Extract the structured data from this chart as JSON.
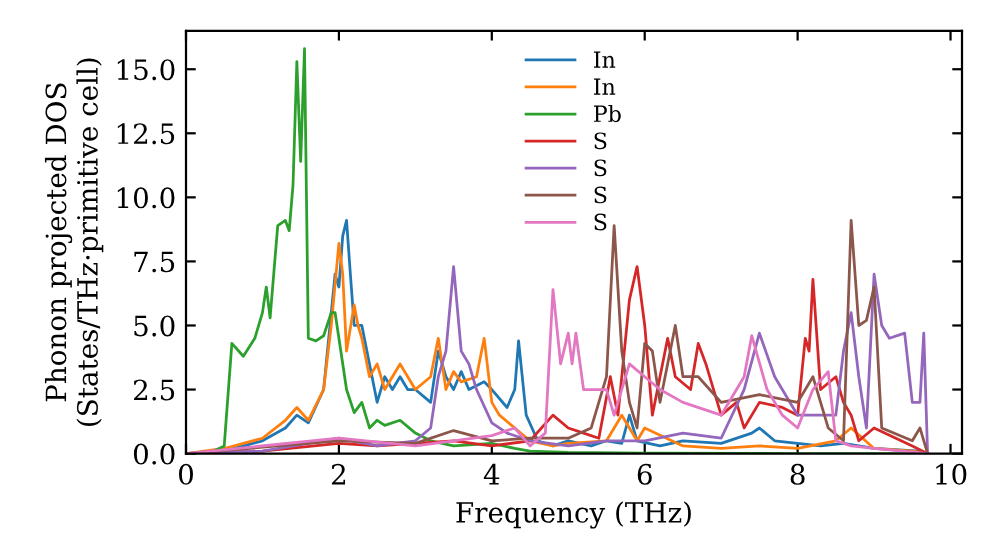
{
  "chart_data": {
    "type": "line",
    "xlabel": "Frequency (THz)",
    "ylabel": "Phonon projected DOS\n(States/THz·primitive cell)",
    "xlim": [
      0,
      10.15
    ],
    "ylim": [
      0,
      16.5
    ],
    "xticks": [
      0,
      2,
      4,
      6,
      8,
      10
    ],
    "yticks": [
      {
        "value": 0,
        "label": "0.0"
      },
      {
        "value": 2.5,
        "label": "2.5"
      },
      {
        "value": 5,
        "label": "5.0"
      },
      {
        "value": 7.5,
        "label": "7.5"
      },
      {
        "value": 10,
        "label": "10.0"
      },
      {
        "value": 12.5,
        "label": "12.5"
      },
      {
        "value": 15,
        "label": "15.0"
      }
    ],
    "grid": false,
    "legend": "top",
    "marker": "none",
    "line_style": "solid",
    "series": [
      {
        "name": "In",
        "color": "#1f77b4",
        "x": [
          0,
          0.5,
          1.0,
          1.3,
          1.45,
          1.6,
          1.8,
          1.9,
          1.95,
          2.0,
          2.05,
          2.1,
          2.15,
          2.2,
          2.3,
          2.4,
          2.5,
          2.6,
          2.7,
          2.8,
          2.9,
          3.0,
          3.2,
          3.3,
          3.4,
          3.5,
          3.6,
          3.7,
          3.9,
          4.0,
          4.2,
          4.3,
          4.35,
          4.45,
          4.6,
          4.8,
          5.0,
          5.3,
          5.5,
          5.7,
          5.8,
          5.9,
          6.2,
          6.5,
          7.0,
          7.4,
          7.5,
          7.7,
          8.0,
          8.3,
          8.6,
          9.0,
          9.6,
          9.7
        ],
        "values": [
          0,
          0.1,
          0.5,
          1.0,
          1.5,
          1.2,
          2.5,
          5.5,
          7.0,
          6.5,
          8.5,
          9.1,
          7.0,
          5.0,
          5.0,
          3.5,
          2.0,
          3.0,
          2.5,
          3.0,
          2.5,
          2.5,
          2.0,
          4.0,
          3.0,
          2.5,
          3.2,
          2.5,
          2.8,
          2.5,
          1.8,
          2.5,
          4.4,
          1.5,
          0.5,
          0.3,
          0.5,
          0.3,
          0.5,
          0.4,
          1.5,
          0.5,
          0.3,
          0.5,
          0.4,
          0.8,
          1.0,
          0.5,
          0.4,
          0.3,
          0.4,
          0.2,
          0.1,
          0
        ]
      },
      {
        "name": "In",
        "color": "#ff7f0e",
        "x": [
          0,
          0.5,
          1.0,
          1.3,
          1.45,
          1.6,
          1.8,
          1.9,
          2.0,
          2.05,
          2.1,
          2.2,
          2.25,
          2.3,
          2.4,
          2.5,
          2.6,
          2.7,
          2.8,
          2.9,
          3.0,
          3.2,
          3.3,
          3.4,
          3.5,
          3.6,
          3.8,
          3.9,
          4.0,
          4.1,
          4.3,
          4.5,
          4.8,
          5.0,
          5.5,
          5.7,
          5.9,
          6.0,
          6.5,
          7.0,
          7.5,
          8.0,
          8.5,
          8.7,
          9.0,
          9.5,
          9.7
        ],
        "values": [
          0,
          0.2,
          0.6,
          1.3,
          1.8,
          1.3,
          2.5,
          5.0,
          8.2,
          7.0,
          4.0,
          5.8,
          5.0,
          4.5,
          3.0,
          3.5,
          2.5,
          3.0,
          3.5,
          3.0,
          2.5,
          3.0,
          4.5,
          2.5,
          3.2,
          2.8,
          3.0,
          4.5,
          2.0,
          1.5,
          1.0,
          0.5,
          0.3,
          0.4,
          0.5,
          1.5,
          0.5,
          1.0,
          0.3,
          0.2,
          0.3,
          0.2,
          0.5,
          1.0,
          0.2,
          0.1,
          0
        ]
      },
      {
        "name": "Pb",
        "color": "#2ca02c",
        "x": [
          0,
          0.3,
          0.5,
          0.6,
          0.75,
          0.9,
          1.0,
          1.05,
          1.1,
          1.2,
          1.3,
          1.35,
          1.4,
          1.45,
          1.5,
          1.55,
          1.6,
          1.7,
          1.8,
          1.9,
          1.95,
          2.0,
          2.1,
          2.2,
          2.3,
          2.4,
          2.5,
          2.6,
          2.8,
          3.0,
          3.2,
          3.5,
          4.0,
          4.3,
          4.5,
          5.0,
          6.0,
          8.0,
          9.7
        ],
        "values": [
          0,
          0,
          0.3,
          4.3,
          3.8,
          4.5,
          5.5,
          6.5,
          5.3,
          8.9,
          9.1,
          8.7,
          10.5,
          15.3,
          11.4,
          15.8,
          4.5,
          4.4,
          4.6,
          5.5,
          5.5,
          4.5,
          2.5,
          1.6,
          2.0,
          1.0,
          1.3,
          1.1,
          1.3,
          0.8,
          0.5,
          0.3,
          0.4,
          0.2,
          0.1,
          0.05,
          0.02,
          0,
          0
        ]
      },
      {
        "name": "S",
        "color": "#d62728",
        "x": [
          0,
          1,
          2,
          2.5,
          3,
          3.5,
          4,
          4.5,
          4.8,
          5.0,
          5.2,
          5.4,
          5.55,
          5.65,
          5.8,
          5.9,
          6.0,
          6.1,
          6.2,
          6.3,
          6.4,
          6.6,
          6.7,
          6.8,
          7.0,
          7.2,
          7.3,
          7.5,
          7.8,
          8.0,
          8.1,
          8.15,
          8.2,
          8.3,
          8.5,
          8.6,
          8.7,
          8.8,
          9.0,
          9.5,
          9.7
        ],
        "values": [
          0,
          0.1,
          0.4,
          0.3,
          0.4,
          0.5,
          0.3,
          0.5,
          1.5,
          1.0,
          0.8,
          0.6,
          3.0,
          1.5,
          6.0,
          7.3,
          5.0,
          1.5,
          3.0,
          4.5,
          3.0,
          2.5,
          4.3,
          3.5,
          1.5,
          2.0,
          1.0,
          2.0,
          1.8,
          1.5,
          4.5,
          4.0,
          6.8,
          2.5,
          3.0,
          2.0,
          1.5,
          0.5,
          1.0,
          0.3,
          0
        ]
      },
      {
        "name": "S",
        "color": "#9467bd",
        "x": [
          0,
          1,
          2,
          2.5,
          3.0,
          3.2,
          3.3,
          3.4,
          3.5,
          3.6,
          3.7,
          3.8,
          4.0,
          4.2,
          4.5,
          5,
          5.5,
          6.0,
          6.5,
          7,
          7.3,
          7.5,
          7.7,
          8,
          8.5,
          8.6,
          8.7,
          8.8,
          8.9,
          9.0,
          9.1,
          9.2,
          9.4,
          9.5,
          9.6,
          9.65,
          9.7
        ],
        "values": [
          0,
          0.1,
          0.6,
          0.3,
          0.5,
          1.0,
          3.0,
          4.0,
          7.3,
          4.0,
          3.5,
          2.5,
          1.2,
          0.8,
          0.5,
          0.3,
          0.5,
          0.5,
          0.8,
          0.6,
          2.5,
          4.7,
          3.0,
          1.5,
          1.5,
          4.0,
          5.5,
          3.0,
          1.0,
          7.0,
          5.0,
          4.5,
          4.7,
          2.0,
          2.0,
          4.7,
          0
        ]
      },
      {
        "name": "S",
        "color": "#8c564b",
        "x": [
          0,
          2,
          3,
          3.5,
          4,
          4.5,
          5.0,
          5.3,
          5.5,
          5.6,
          5.7,
          5.8,
          5.9,
          6.0,
          6.1,
          6.2,
          6.4,
          6.5,
          6.7,
          7.0,
          7.5,
          8.0,
          8.2,
          8.4,
          8.6,
          8.7,
          8.8,
          8.9,
          9.0,
          9.1,
          9.5,
          9.6,
          9.7
        ],
        "values": [
          0,
          0.5,
          0.4,
          0.9,
          0.5,
          0.6,
          0.6,
          1.0,
          3.0,
          8.9,
          4.0,
          2.0,
          1.0,
          4.3,
          4.0,
          2.0,
          5.0,
          3.0,
          3.0,
          2.0,
          2.3,
          2.0,
          3.0,
          1.0,
          0.5,
          9.1,
          5.0,
          5.2,
          6.5,
          1.0,
          0.5,
          1.0,
          0
        ]
      },
      {
        "name": "S",
        "color": "#e377c2",
        "x": [
          0,
          2,
          3,
          3.5,
          4,
          4.3,
          4.5,
          4.7,
          4.8,
          4.9,
          5.0,
          5.05,
          5.1,
          5.2,
          5.5,
          5.6,
          5.8,
          6.0,
          6.2,
          6.5,
          7.0,
          7.3,
          7.4,
          7.6,
          7.8,
          8.0,
          8.2,
          8.4,
          8.5,
          8.7,
          9.0,
          9.7
        ],
        "values": [
          0,
          0.6,
          0.3,
          0.5,
          0.7,
          1.0,
          0.3,
          0.8,
          6.4,
          3.5,
          4.7,
          3.5,
          4.7,
          2.5,
          2.5,
          1.5,
          3.5,
          3.0,
          2.5,
          2.0,
          1.5,
          3.0,
          4.6,
          2.5,
          1.5,
          1.0,
          2.5,
          3.2,
          0.5,
          0.3,
          0.2,
          0
        ]
      }
    ]
  }
}
